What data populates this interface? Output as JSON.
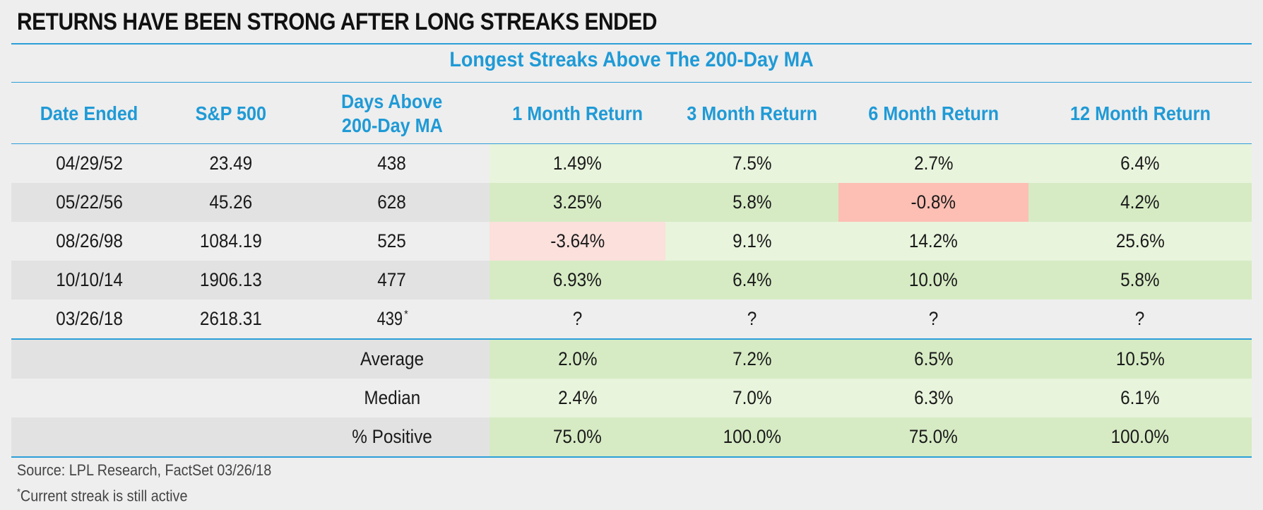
{
  "title": "RETURNS HAVE BEEN STRONG AFTER LONG STREAKS ENDED",
  "subtitle": "Longest Streaks Above The 200-Day MA",
  "columns": {
    "date": "Date Ended",
    "sp500": "S&P 500",
    "days_line1": "Days Above",
    "days_line2": "200-Day MA",
    "m1": "1 Month Return",
    "m3": "3 Month Return",
    "m6": "6 Month Return",
    "m12": "12 Month Return"
  },
  "rows": [
    {
      "date": "04/29/52",
      "sp500": "23.49",
      "days": "438",
      "days_mark": "",
      "m1": "1.49%",
      "m3": "7.5%",
      "m6": "2.7%",
      "m12": "6.4%"
    },
    {
      "date": "05/22/56",
      "sp500": "45.26",
      "days": "628",
      "days_mark": "",
      "m1": "3.25%",
      "m3": "5.8%",
      "m6": "-0.8%",
      "m12": "4.2%"
    },
    {
      "date": "08/26/98",
      "sp500": "1084.19",
      "days": "525",
      "days_mark": "",
      "m1": "-3.64%",
      "m3": "9.1%",
      "m6": "14.2%",
      "m12": "25.6%"
    },
    {
      "date": "10/10/14",
      "sp500": "1906.13",
      "days": "477",
      "days_mark": "",
      "m1": "6.93%",
      "m3": "6.4%",
      "m6": "10.0%",
      "m12": "5.8%"
    },
    {
      "date": "03/26/18",
      "sp500": "2618.31",
      "days": "439",
      "days_mark": "*",
      "m1": "?",
      "m3": "?",
      "m6": "?",
      "m12": "?"
    }
  ],
  "summary": [
    {
      "label": "Average",
      "m1": "2.0%",
      "m3": "7.2%",
      "m6": "6.5%",
      "m12": "10.5%"
    },
    {
      "label": "Median",
      "m1": "2.4%",
      "m3": "7.0%",
      "m6": "6.3%",
      "m12": "6.1%"
    },
    {
      "label": "% Positive",
      "m1": "75.0%",
      "m3": "100.0%",
      "m6": "75.0%",
      "m12": "100.0%"
    }
  ],
  "notes": {
    "source": "Source: LPL Research, FactSet 03/26/18",
    "footnote_mark": "*",
    "footnote": "Current streak is still active"
  },
  "colors": {
    "accent_blue": "#1f9ad6",
    "positive_light": "#e8f4dc",
    "positive_dark": "#d6ebc4",
    "negative_light": "#fbe0dc",
    "negative_dark": "#fdbeb3"
  },
  "chart_data": {
    "type": "table",
    "title": "RETURNS HAVE BEEN STRONG AFTER LONG STREAKS ENDED",
    "subtitle": "Longest Streaks Above The 200-Day MA",
    "headers": [
      "Date Ended",
      "S&P 500",
      "Days Above 200-Day MA",
      "1 Month Return",
      "3 Month Return",
      "6 Month Return",
      "12 Month Return"
    ],
    "rows": [
      [
        "04/29/52",
        23.49,
        438,
        1.49,
        7.5,
        2.7,
        6.4
      ],
      [
        "05/22/56",
        45.26,
        628,
        3.25,
        5.8,
        -0.8,
        4.2
      ],
      [
        "08/26/98",
        1084.19,
        525,
        -3.64,
        9.1,
        14.2,
        25.6
      ],
      [
        "10/10/14",
        1906.13,
        477,
        6.93,
        6.4,
        10.0,
        5.8
      ],
      [
        "03/26/18",
        2618.31,
        439,
        null,
        null,
        null,
        null
      ]
    ],
    "summary": {
      "Average": [
        2.0,
        7.2,
        6.5,
        10.5
      ],
      "Median": [
        2.4,
        7.0,
        6.3,
        6.1
      ],
      "% Positive": [
        75.0,
        100.0,
        75.0,
        100.0
      ]
    }
  }
}
